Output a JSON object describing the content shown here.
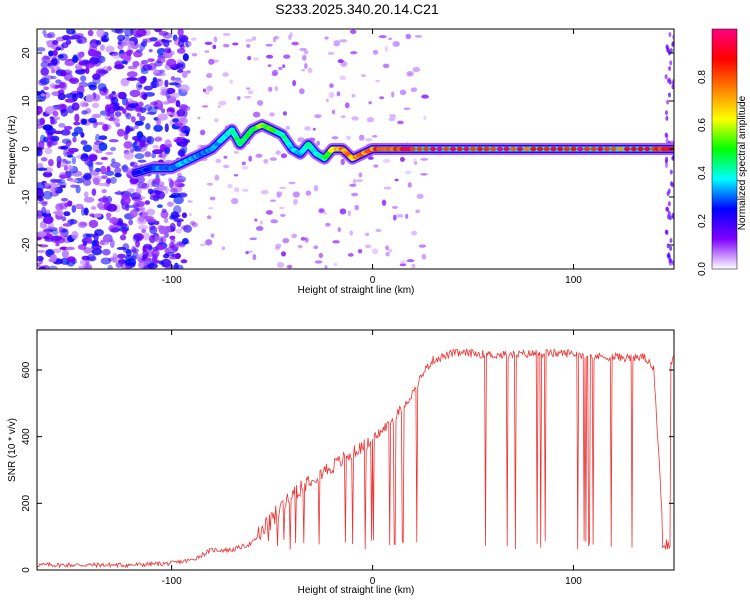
{
  "title": "S233.2025.340.20.14.C21",
  "chart_data": [
    {
      "type": "heatmap",
      "title": "S233.2025.340.20.14.C21",
      "xlabel": "Height of straight line (km)",
      "ylabel": "Frequency (Hz)",
      "xlim": [
        -167,
        150
      ],
      "ylim": [
        -25,
        25
      ],
      "xticks": [
        -100,
        0,
        100
      ],
      "yticks": [
        -20,
        -10,
        0,
        10,
        20
      ],
      "ridge": {
        "x": [
          -118,
          -110,
          -100,
          -95,
          -90,
          -85,
          -80,
          -75,
          -70,
          -66,
          -60,
          -55,
          -50,
          -45,
          -40,
          -36,
          -32,
          -28,
          -24,
          -20,
          -15,
          -10,
          -5,
          0,
          10,
          20,
          40,
          60,
          80,
          100,
          120,
          140,
          150
        ],
        "frequency": [
          -5,
          -4,
          -4,
          -3,
          -2,
          -1,
          0,
          2,
          4,
          1,
          4,
          5,
          4,
          3,
          0,
          -1,
          1,
          -1,
          -2,
          0,
          0,
          -2,
          -1,
          0,
          0,
          0,
          0,
          0,
          0,
          0,
          0,
          0,
          0
        ],
        "amplitude": [
          0.25,
          0.3,
          0.3,
          0.35,
          0.35,
          0.3,
          0.35,
          0.35,
          0.45,
          0.45,
          0.55,
          0.55,
          0.5,
          0.45,
          0.35,
          0.35,
          0.45,
          0.4,
          0.45,
          0.6,
          0.8,
          0.7,
          0.75,
          0.8,
          0.85,
          0.9,
          0.9,
          0.9,
          0.85,
          0.9,
          0.85,
          0.9,
          0.9
        ]
      },
      "colorbar": {
        "label": "Normalized spectral amplitude",
        "range": [
          0,
          1
        ],
        "ticks": [
          "0.0",
          "0.2",
          "0.4",
          "0.6",
          "0.8"
        ],
        "colors": [
          "#ffffff",
          "#8000ff",
          "#0000ff",
          "#00ffff",
          "#00ff00",
          "#ffff00",
          "#ff8000",
          "#ff0000",
          "#ff0080"
        ]
      }
    },
    {
      "type": "line",
      "xlabel": "Height of straight line (km)",
      "ylabel": "SNR (10 * v/v)",
      "xlim": [
        -167,
        150
      ],
      "ylim": [
        0,
        720
      ],
      "xticks": [
        -100,
        0,
        100
      ],
      "yticks": [
        0,
        200,
        400,
        600
      ],
      "series": [
        {
          "name": "SNR",
          "color": "#ee3333",
          "x": [
            -167,
            -140,
            -120,
            -100,
            -90,
            -80,
            -70,
            -60,
            -50,
            -40,
            -30,
            -20,
            -10,
            0,
            10,
            20,
            25,
            30,
            40,
            50,
            60,
            70,
            80,
            90,
            100,
            110,
            120,
            130,
            135,
            140,
            145,
            148,
            150
          ],
          "y": [
            15,
            15,
            15,
            20,
            30,
            60,
            60,
            80,
            150,
            230,
            280,
            310,
            350,
            390,
            450,
            530,
            590,
            630,
            650,
            650,
            645,
            645,
            650,
            650,
            650,
            640,
            640,
            635,
            640,
            600,
            70,
            620,
            640
          ]
        }
      ]
    }
  ]
}
